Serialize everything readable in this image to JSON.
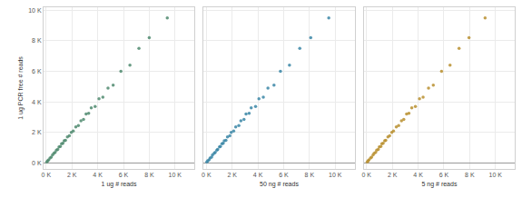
{
  "chart_data": [
    {
      "type": "scatter",
      "x_label": "1 ug # reads",
      "y_label": "1 ug PCR free # reads",
      "color": "#4f8a6f",
      "grid": true,
      "x": [
        50,
        120,
        200,
        300,
        400,
        500,
        600,
        700,
        800,
        900,
        1000,
        1100,
        1200,
        1300,
        1400,
        1500,
        1650,
        1800,
        1950,
        2100,
        2300,
        2500,
        2700,
        2900,
        3100,
        3300,
        3500,
        3800,
        4100,
        4400,
        4800,
        5200,
        5800,
        6500,
        7200,
        8000,
        9400
      ],
      "values": [
        60,
        140,
        190,
        320,
        380,
        530,
        620,
        690,
        830,
        880,
        1050,
        1080,
        1250,
        1280,
        1450,
        1480,
        1700,
        1780,
        2000,
        2080,
        2350,
        2450,
        2750,
        2850,
        3200,
        3250,
        3600,
        3700,
        4200,
        4300,
        4900,
        5100,
        6000,
        6400,
        7500,
        8200,
        9500
      ],
      "xlim": [
        -200,
        11500
      ],
      "ylim": [
        -400,
        10200
      ],
      "xticks": [
        {
          "value": 0,
          "label": "0 K"
        },
        {
          "value": 2000,
          "label": "2 K"
        },
        {
          "value": 4000,
          "label": "4 K"
        },
        {
          "value": 6000,
          "label": "6 K"
        },
        {
          "value": 8000,
          "label": "8 K"
        },
        {
          "value": 10000,
          "label": "10 K"
        }
      ],
      "yticks": [
        {
          "value": 0,
          "label": "0 K"
        },
        {
          "value": 2000,
          "label": "2 K"
        },
        {
          "value": 4000,
          "label": "4 K"
        },
        {
          "value": 6000,
          "label": "6 K"
        },
        {
          "value": 8000,
          "label": "8 K"
        },
        {
          "value": 10000,
          "label": "10 K"
        }
      ]
    },
    {
      "type": "scatter",
      "x_label": "50 ng # reads",
      "color": "#3a86a6",
      "grid": true,
      "tick_labels": "x",
      "x": [
        40,
        110,
        210,
        290,
        410,
        480,
        610,
        690,
        820,
        880,
        1020,
        1090,
        1210,
        1310,
        1390,
        1520,
        1640,
        1820,
        1930,
        2120,
        2280,
        2520,
        2680,
        2920,
        3080,
        3320,
        3480,
        3820,
        4080,
        4420,
        4780,
        5250,
        5750,
        6450,
        7250,
        8100,
        9500
      ],
      "values": [
        60,
        140,
        190,
        320,
        380,
        530,
        620,
        690,
        830,
        880,
        1050,
        1080,
        1250,
        1280,
        1450,
        1480,
        1700,
        1780,
        2000,
        2080,
        2350,
        2450,
        2750,
        2850,
        3200,
        3250,
        3600,
        3700,
        4200,
        4300,
        4900,
        5100,
        6000,
        6400,
        7500,
        8200,
        9500
      ],
      "xlim": [
        -200,
        11500
      ],
      "ylim": [
        -400,
        10200
      ],
      "xticks": [
        {
          "value": 0,
          "label": "0 K"
        },
        {
          "value": 2000,
          "label": "2 K"
        },
        {
          "value": 4000,
          "label": "4 K"
        },
        {
          "value": 6000,
          "label": "6 K"
        },
        {
          "value": 8000,
          "label": "8 K"
        },
        {
          "value": 10000,
          "label": "10 K"
        }
      ],
      "yticks": [
        {
          "value": 0,
          "label": "0 K"
        },
        {
          "value": 2000,
          "label": "2 K"
        },
        {
          "value": 4000,
          "label": "4 K"
        },
        {
          "value": 6000,
          "label": "6 K"
        },
        {
          "value": 8000,
          "label": "8 K"
        },
        {
          "value": 10000,
          "label": "10 K"
        }
      ]
    },
    {
      "type": "scatter",
      "x_label": "5 ng # reads",
      "color": "#b98f2f",
      "grid": true,
      "tick_labels": "x",
      "x": [
        55,
        125,
        190,
        310,
        395,
        510,
        590,
        710,
        790,
        910,
        990,
        1110,
        1190,
        1290,
        1410,
        1490,
        1660,
        1790,
        1960,
        2090,
        2310,
        2490,
        2710,
        2890,
        3110,
        3290,
        3510,
        3790,
        4110,
        4390,
        4810,
        5180,
        5820,
        6480,
        7180,
        7950,
        9200
      ],
      "values": [
        60,
        140,
        190,
        320,
        380,
        530,
        620,
        690,
        830,
        880,
        1050,
        1080,
        1250,
        1280,
        1450,
        1480,
        1700,
        1780,
        2000,
        2080,
        2350,
        2450,
        2750,
        2850,
        3200,
        3250,
        3600,
        3700,
        4200,
        4300,
        4900,
        5100,
        6000,
        6400,
        7500,
        8200,
        9500
      ],
      "xlim": [
        -200,
        11500
      ],
      "ylim": [
        -400,
        10200
      ],
      "xticks": [
        {
          "value": 0,
          "label": "0 K"
        },
        {
          "value": 2000,
          "label": "2 K"
        },
        {
          "value": 4000,
          "label": "4 K"
        },
        {
          "value": 6000,
          "label": "6 K"
        },
        {
          "value": 8000,
          "label": "8 K"
        },
        {
          "value": 10000,
          "label": "10 K"
        }
      ],
      "yticks": [
        {
          "value": 0,
          "label": "0 K"
        },
        {
          "value": 2000,
          "label": "2 K"
        },
        {
          "value": 4000,
          "label": "4 K"
        },
        {
          "value": 6000,
          "label": "6 K"
        },
        {
          "value": 8000,
          "label": "8 K"
        },
        {
          "value": 10000,
          "label": "10 K"
        }
      ]
    }
  ]
}
